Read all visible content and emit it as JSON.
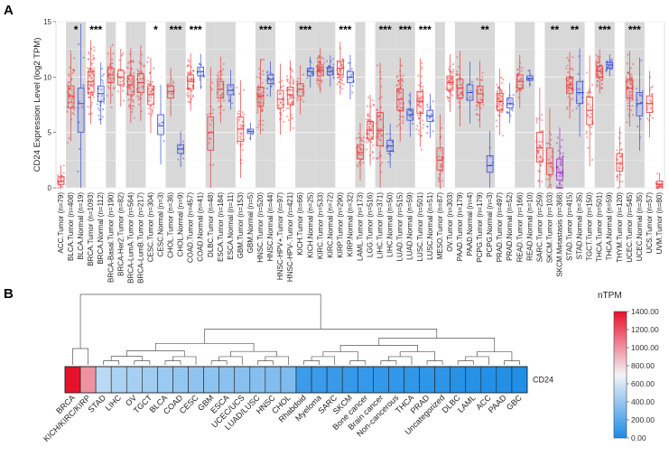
{
  "panel_a": {
    "letter": "A",
    "chart_data": {
      "type": "boxplot",
      "ylabel": "CD24 Expression Level (log2 TPM)",
      "ylim": [
        0,
        15
      ],
      "yticks": [
        0,
        5,
        10,
        15
      ],
      "grid": true,
      "shaded_groups": [
        1,
        3,
        5,
        6,
        8,
        10,
        11,
        13,
        15,
        16,
        18,
        20,
        21,
        23,
        25,
        26,
        28,
        30,
        31,
        33,
        35
      ],
      "colors": {
        "tumor": "#e8403f",
        "normal": "#3a4fd6",
        "metastasis": "#a030c8",
        "shade": "#d8d8d8"
      },
      "categories": [
        {
          "label": "ACC.Tumor (n=79)",
          "group": 0,
          "kind": "tumor",
          "median": 0.6,
          "q1": 0.3,
          "q3": 1.0
        },
        {
          "label": "BLCA.Tumor (n=408)",
          "group": 1,
          "kind": "tumor",
          "median": 8.3,
          "q1": 7.2,
          "q3": 9.2
        },
        {
          "label": "BLCA.Normal (n=19)",
          "group": 1,
          "kind": "normal",
          "median": 7.6,
          "q1": 5.0,
          "q3": 9.0
        },
        {
          "label": "BRCA.Tumor (n=1093)",
          "group": 2,
          "kind": "tumor",
          "median": 9.6,
          "q1": 8.6,
          "q3": 10.5
        },
        {
          "label": "BRCA.Normal (n=112)",
          "group": 2,
          "kind": "normal",
          "median": 8.5,
          "q1": 7.8,
          "q3": 9.2
        },
        {
          "label": "BRCA-Basal.Tumor (n=190)",
          "group": 3,
          "kind": "tumor",
          "median": 10.2,
          "q1": 9.5,
          "q3": 10.8
        },
        {
          "label": "BRCA-Her2.Tumor (n=82)",
          "group": 4,
          "kind": "tumor",
          "median": 10.0,
          "q1": 9.3,
          "q3": 10.6
        },
        {
          "label": "BRCA-LumA.Tumor (n=564)",
          "group": 5,
          "kind": "tumor",
          "median": 9.3,
          "q1": 8.4,
          "q3": 10.1
        },
        {
          "label": "BRCA-LumB.Tumor (n=217)",
          "group": 6,
          "kind": "tumor",
          "median": 9.5,
          "q1": 8.6,
          "q3": 10.3
        },
        {
          "label": "CESC.Tumor (n=304)",
          "group": 7,
          "kind": "tumor",
          "median": 8.4,
          "q1": 7.5,
          "q3": 9.2
        },
        {
          "label": "CESC.Normal (n=3)",
          "group": 7,
          "kind": "normal",
          "median": 5.6,
          "q1": 4.8,
          "q3": 6.6
        },
        {
          "label": "CHOL.Tumor (n=36)",
          "group": 8,
          "kind": "tumor",
          "median": 8.7,
          "q1": 8.1,
          "q3": 9.2
        },
        {
          "label": "CHOL.Normal (n=9)",
          "group": 8,
          "kind": "normal",
          "median": 3.5,
          "q1": 3.1,
          "q3": 3.9
        },
        {
          "label": "COAD.Tumor (n=457)",
          "group": 9,
          "kind": "tumor",
          "median": 9.6,
          "q1": 8.9,
          "q3": 10.2
        },
        {
          "label": "COAD.Normal (n=41)",
          "group": 9,
          "kind": "normal",
          "median": 10.5,
          "q1": 10.1,
          "q3": 10.9
        },
        {
          "label": "DLBC.Tumor (n=48)",
          "group": 10,
          "kind": "tumor",
          "median": 5.0,
          "q1": 3.4,
          "q3": 6.4
        },
        {
          "label": "ESCA.Tumor (n=184)",
          "group": 11,
          "kind": "tumor",
          "median": 8.9,
          "q1": 8.1,
          "q3": 9.6
        },
        {
          "label": "ESCA.Normal (n=11)",
          "group": 11,
          "kind": "normal",
          "median": 8.8,
          "q1": 8.4,
          "q3": 9.3
        },
        {
          "label": "GBM.Tumor (n=153)",
          "group": 12,
          "kind": "tumor",
          "median": 5.3,
          "q1": 4.2,
          "q3": 6.4
        },
        {
          "label": "GBM.Normal (n=5)",
          "group": 12,
          "kind": "normal",
          "median": 5.1,
          "q1": 4.9,
          "q3": 5.3
        },
        {
          "label": "HNSC.Tumor (n=520)",
          "group": 13,
          "kind": "tumor",
          "median": 8.3,
          "q1": 7.4,
          "q3": 9.1
        },
        {
          "label": "HNSC.Normal (n=44)",
          "group": 13,
          "kind": "normal",
          "median": 9.8,
          "q1": 9.4,
          "q3": 10.2
        },
        {
          "label": "HNSC-HPV+.Tumor (n=97)",
          "group": 14,
          "kind": "tumor",
          "median": 8.0,
          "q1": 7.2,
          "q3": 8.8
        },
        {
          "label": "HNSC-HPV-.Tumor (n=421)",
          "group": 14,
          "kind": "tumor",
          "median": 8.4,
          "q1": 7.5,
          "q3": 9.1
        },
        {
          "label": "KICH.Tumor (n=66)",
          "group": 15,
          "kind": "tumor",
          "median": 8.9,
          "q1": 8.3,
          "q3": 9.4
        },
        {
          "label": "KICH.Normal (n=25)",
          "group": 15,
          "kind": "normal",
          "median": 10.5,
          "q1": 10.1,
          "q3": 10.8
        },
        {
          "label": "KIRC.Tumor (n=533)",
          "group": 16,
          "kind": "tumor",
          "median": 10.6,
          "q1": 10.1,
          "q3": 11.1
        },
        {
          "label": "KIRC.Normal (n=72)",
          "group": 16,
          "kind": "normal",
          "median": 10.5,
          "q1": 10.2,
          "q3": 10.9
        },
        {
          "label": "KIRP.Tumor (n=290)",
          "group": 17,
          "kind": "tumor",
          "median": 10.8,
          "q1": 10.2,
          "q3": 11.4
        },
        {
          "label": "KIRP.Normal (n=32)",
          "group": 17,
          "kind": "normal",
          "median": 10.0,
          "q1": 9.5,
          "q3": 10.5
        },
        {
          "label": "LAML.Tumor (n=173)",
          "group": 18,
          "kind": "tumor",
          "median": 3.2,
          "q1": 2.6,
          "q3": 3.9
        },
        {
          "label": "LGG.Tumor (n=516)",
          "group": 19,
          "kind": "tumor",
          "median": 5.2,
          "q1": 4.4,
          "q3": 6.0
        },
        {
          "label": "LIHC.Tumor (n=371)",
          "group": 20,
          "kind": "tumor",
          "median": 5.2,
          "q1": 3.8,
          "q3": 6.8
        },
        {
          "label": "LIHC.Normal (n=50)",
          "group": 20,
          "kind": "normal",
          "median": 3.8,
          "q1": 3.3,
          "q3": 4.3
        },
        {
          "label": "LUAD.Tumor (n=515)",
          "group": 21,
          "kind": "tumor",
          "median": 8.0,
          "q1": 7.0,
          "q3": 8.9
        },
        {
          "label": "LUAD.Normal (n=59)",
          "group": 21,
          "kind": "normal",
          "median": 6.6,
          "q1": 6.1,
          "q3": 7.1
        },
        {
          "label": "LUSC.Tumor (n=501)",
          "group": 22,
          "kind": "tumor",
          "median": 7.8,
          "q1": 6.7,
          "q3": 8.7
        },
        {
          "label": "LUSC.Normal (n=51)",
          "group": 22,
          "kind": "normal",
          "median": 6.5,
          "q1": 6.0,
          "q3": 7.0
        },
        {
          "label": "MESO.Tumor (n=87)",
          "group": 23,
          "kind": "tumor",
          "median": 2.5,
          "q1": 1.6,
          "q3": 3.6
        },
        {
          "label": "OV.Tumor (n=303)",
          "group": 24,
          "kind": "tumor",
          "median": 9.5,
          "q1": 8.8,
          "q3": 10.1
        },
        {
          "label": "PAAD.Tumor (n=179)",
          "group": 25,
          "kind": "tumor",
          "median": 9.0,
          "q1": 8.1,
          "q3": 9.8
        },
        {
          "label": "PAAD.Normal (n=4)",
          "group": 25,
          "kind": "normal",
          "median": 8.6,
          "q1": 7.9,
          "q3": 9.3
        },
        {
          "label": "PCPG.Tumor (n=179)",
          "group": 26,
          "kind": "tumor",
          "median": 8.5,
          "q1": 7.7,
          "q3": 9.2
        },
        {
          "label": "PCPG.Normal (n=3)",
          "group": 26,
          "kind": "normal",
          "median": 2.0,
          "q1": 1.4,
          "q3": 2.9
        },
        {
          "label": "PRAD.Tumor (n=497)",
          "group": 27,
          "kind": "tumor",
          "median": 7.8,
          "q1": 7.0,
          "q3": 8.5
        },
        {
          "label": "PRAD.Normal (n=52)",
          "group": 27,
          "kind": "normal",
          "median": 7.6,
          "q1": 7.2,
          "q3": 8.1
        },
        {
          "label": "READ.Tumor (n=166)",
          "group": 28,
          "kind": "tumor",
          "median": 9.6,
          "q1": 9.0,
          "q3": 10.2
        },
        {
          "label": "READ.Normal (n=10)",
          "group": 28,
          "kind": "normal",
          "median": 9.9,
          "q1": 9.7,
          "q3": 10.1
        },
        {
          "label": "SARC.Tumor (n=259)",
          "group": 29,
          "kind": "tumor",
          "median": 3.6,
          "q1": 2.3,
          "q3": 5.0
        },
        {
          "label": "SKCM.Tumor (n=103)",
          "group": 30,
          "kind": "tumor",
          "median": 2.2,
          "q1": 1.2,
          "q3": 3.6
        },
        {
          "label": "SKCM.Metastasis (n=368)",
          "group": 30,
          "kind": "metastasis",
          "median": 1.4,
          "q1": 0.7,
          "q3": 2.6
        },
        {
          "label": "STAD.Tumor (n=415)",
          "group": 31,
          "kind": "tumor",
          "median": 9.3,
          "q1": 8.5,
          "q3": 10.0
        },
        {
          "label": "STAD.Normal (n=35)",
          "group": 31,
          "kind": "normal",
          "median": 8.6,
          "q1": 7.6,
          "q3": 9.6
        },
        {
          "label": "TGCT.Tumor (n=150)",
          "group": 32,
          "kind": "tumor",
          "median": 7.0,
          "q1": 5.7,
          "q3": 8.2
        },
        {
          "label": "THCA.Tumor (n=501)",
          "group": 33,
          "kind": "tumor",
          "median": 10.5,
          "q1": 10.0,
          "q3": 11.0
        },
        {
          "label": "THCA.Normal (n=59)",
          "group": 33,
          "kind": "normal",
          "median": 11.1,
          "q1": 10.8,
          "q3": 11.3
        },
        {
          "label": "THYM.Tumor (n=120)",
          "group": 34,
          "kind": "tumor",
          "median": 2.2,
          "q1": 1.5,
          "q3": 3.1
        },
        {
          "label": "UCEC.Tumor (n=545)",
          "group": 35,
          "kind": "tumor",
          "median": 9.0,
          "q1": 8.1,
          "q3": 9.8
        },
        {
          "label": "UCEC.Normal (n=35)",
          "group": 35,
          "kind": "normal",
          "median": 7.6,
          "q1": 6.5,
          "q3": 8.6
        },
        {
          "label": "UCS.Tumor (n=57)",
          "group": 36,
          "kind": "tumor",
          "median": 7.6,
          "q1": 6.8,
          "q3": 8.3
        },
        {
          "label": "UVM.Tumor (n=80)",
          "group": 37,
          "kind": "tumor",
          "median": 0.3,
          "q1": 0.1,
          "q3": 0.6
        }
      ],
      "annotations": [
        {
          "text": "*",
          "group": 1
        },
        {
          "text": "***",
          "group": 2
        },
        {
          "text": "*",
          "group": 7
        },
        {
          "text": "***",
          "group": 8
        },
        {
          "text": "***",
          "group": 9
        },
        {
          "text": "***",
          "group": 13
        },
        {
          "text": "***",
          "group": 15
        },
        {
          "text": "***",
          "group": 17
        },
        {
          "text": "***",
          "group": 20
        },
        {
          "text": "***",
          "group": 21
        },
        {
          "text": "***",
          "group": 22
        },
        {
          "text": "**",
          "group": 26
        },
        {
          "text": "**",
          "group": 30
        },
        {
          "text": "**",
          "group": 31
        },
        {
          "text": "***",
          "group": 33
        },
        {
          "text": "***",
          "group": 35
        }
      ]
    }
  },
  "panel_b": {
    "letter": "B",
    "chart_data": {
      "type": "heatmap",
      "row_label": "CD24",
      "legend_title": "nTPM",
      "legend_ticks": [
        0.0,
        200.0,
        400.0,
        600.0,
        800.0,
        1000.0,
        1200.0,
        1400.0
      ],
      "legend_tick_labels": [
        "0.00",
        "200.00",
        "400.00",
        "600.00",
        "800.00",
        "1000.00",
        "1200.00",
        "1400.00"
      ],
      "color_min": "#1a8ce6",
      "color_mid": "#f4f4f8",
      "color_max": "#e8102a",
      "dendrogram": true,
      "columns": [
        {
          "label": "BRCA",
          "value": 1400
        },
        {
          "label": "KICH/KIRC/KIRP",
          "value": 1000
        },
        {
          "label": "STAD",
          "value": 520
        },
        {
          "label": "LIHC",
          "value": 470
        },
        {
          "label": "OV",
          "value": 450
        },
        {
          "label": "TGCT",
          "value": 430
        },
        {
          "label": "BLCA",
          "value": 410
        },
        {
          "label": "COAD",
          "value": 390
        },
        {
          "label": "CESC",
          "value": 380
        },
        {
          "label": "GBM",
          "value": 370
        },
        {
          "label": "ESCA",
          "value": 360
        },
        {
          "label": "UCEC/UCS",
          "value": 350
        },
        {
          "label": "LUAD/LUSC",
          "value": 340
        },
        {
          "label": "HNSC",
          "value": 330
        },
        {
          "label": "CHOL",
          "value": 320
        },
        {
          "label": "Rhabdoid",
          "value": 110
        },
        {
          "label": "Myeloma",
          "value": 100
        },
        {
          "label": "SARC",
          "value": 95
        },
        {
          "label": "SKCM",
          "value": 90
        },
        {
          "label": "Bone cancer",
          "value": 85
        },
        {
          "label": "Brain cancer",
          "value": 80
        },
        {
          "label": "Non-cancerous",
          "value": 75
        },
        {
          "label": "THCA",
          "value": 70
        },
        {
          "label": "PRAD",
          "value": 65
        },
        {
          "label": "Uncategorized",
          "value": 60
        },
        {
          "label": "DLBC",
          "value": 40
        },
        {
          "label": "LAML",
          "value": 35
        },
        {
          "label": "ACC",
          "value": 30
        },
        {
          "label": "PAAD",
          "value": 25
        },
        {
          "label": "GBC",
          "value": 20
        }
      ]
    }
  }
}
